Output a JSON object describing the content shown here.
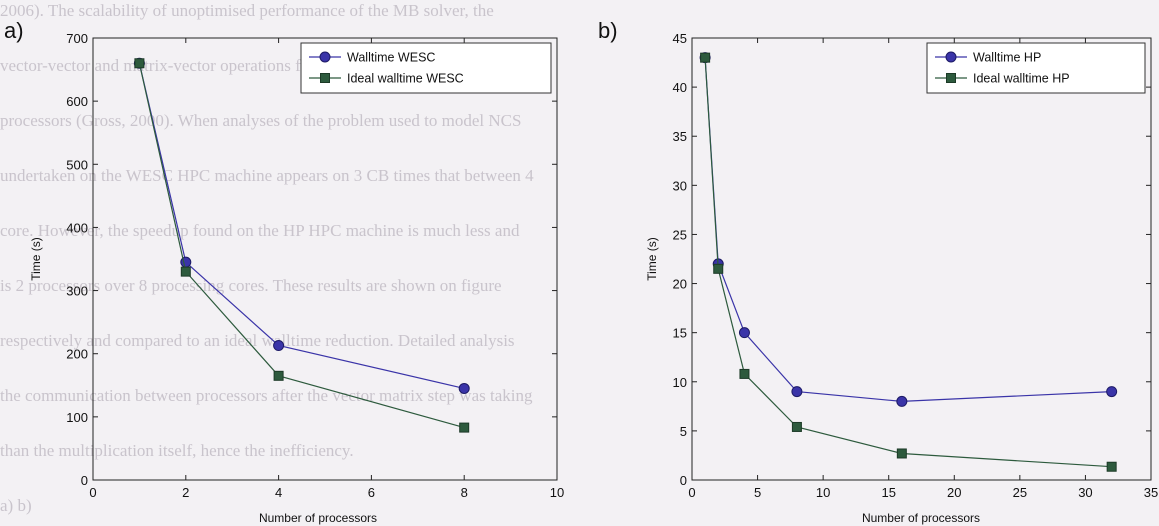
{
  "figure": {
    "background_color": "#f3f1f4",
    "background_text": [
      "2006). The scalability of unoptimised performance of the MB solver, the",
      "vector-vector and matrix-vector operations found speedup of up to 4.5 pr",
      "processors (Gross, 2000). When analyses of the problem used to model NCS",
      "undertaken on the WESC HPC machine appears on 3 CB times that between 4",
      "core. However, the speedup found on the HP HPC machine is much less and",
      "is 2 processors over 8 processing cores. These results are shown on figure",
      "respectively and compared to an ideal walltime reduction. Detailed analysis",
      "the communication between processors after the vector matrix step was taking",
      "than the multiplication itself, hence the inefficiency.",
      "a)                                                                     b)"
    ]
  },
  "chart_data": [
    {
      "type": "line",
      "panel_label": "a)",
      "xlabel": "Number of processors",
      "ylabel": "Time (s)",
      "xlim": [
        0,
        10
      ],
      "ylim": [
        0,
        700
      ],
      "xticks": [
        0,
        2,
        4,
        6,
        8,
        10
      ],
      "yticks": [
        0,
        100,
        200,
        300,
        400,
        500,
        600,
        700
      ],
      "grid": false,
      "legend_position": "top-right",
      "series": [
        {
          "name": "Walltime WESC",
          "marker": "circle",
          "color": "#3a34a8",
          "x": [
            1,
            2,
            4,
            8
          ],
          "y": [
            660,
            345,
            213,
            145
          ]
        },
        {
          "name": "Ideal walltime WESC",
          "marker": "square",
          "color": "#2d5a3d",
          "x": [
            1,
            2,
            4,
            8
          ],
          "y": [
            660,
            330,
            165,
            83
          ]
        }
      ]
    },
    {
      "type": "line",
      "panel_label": "b)",
      "xlabel": "Number of processors",
      "ylabel": "Time (s)",
      "xlim": [
        0,
        35
      ],
      "ylim": [
        0,
        45
      ],
      "xticks": [
        0,
        5,
        10,
        15,
        20,
        25,
        30,
        35
      ],
      "yticks": [
        0,
        5,
        10,
        15,
        20,
        25,
        30,
        35,
        40,
        45
      ],
      "grid": false,
      "legend_position": "top-right",
      "series": [
        {
          "name": "Walltime HP",
          "marker": "circle",
          "color": "#3a34a8",
          "x": [
            1,
            2,
            4,
            8,
            16,
            32
          ],
          "y": [
            43,
            22,
            15,
            9,
            8,
            9
          ]
        },
        {
          "name": "Ideal walltime HP",
          "marker": "square",
          "color": "#2d5a3d",
          "x": [
            1,
            2,
            4,
            8,
            16,
            32
          ],
          "y": [
            43,
            21.5,
            10.8,
            5.4,
            2.7,
            1.35
          ]
        }
      ]
    }
  ]
}
